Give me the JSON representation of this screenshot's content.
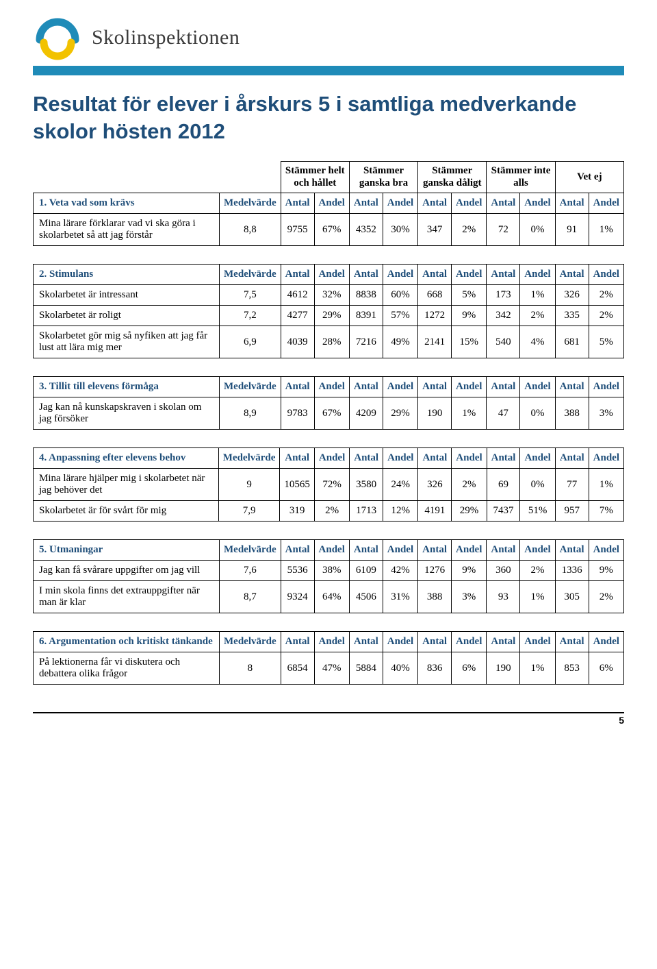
{
  "brand": {
    "name": "Skolinspektionen",
    "arc_top_color": "#1f8bb8",
    "arc_bottom_color": "#f2c200",
    "rule_color": "#1f8bb8",
    "title_color": "#1f4e79"
  },
  "title": "Resultat för elever i årskurs 5 i samtliga medverkande skolor hösten 2012",
  "column_groups": [
    "Stämmer helt och hållet",
    "Stämmer ganska bra",
    "Stämmer ganska dåligt",
    "Stämmer inte alls",
    "Vet ej"
  ],
  "medel_label": "Medelvärde",
  "sub_labels": {
    "antal": "Antal",
    "andel": "Andel"
  },
  "sections": [
    {
      "heading": "1. Veta vad som krävs",
      "rows": [
        {
          "label": "Mina lärare förklarar vad vi ska göra i skolarbetet så att jag förstår",
          "mv": "8,8",
          "c": [
            "9755",
            "67%",
            "4352",
            "30%",
            "347",
            "2%",
            "72",
            "0%",
            "91",
            "1%"
          ]
        }
      ]
    },
    {
      "heading": "2. Stimulans",
      "rows": [
        {
          "label": "Skolarbetet är intressant",
          "mv": "7,5",
          "c": [
            "4612",
            "32%",
            "8838",
            "60%",
            "668",
            "5%",
            "173",
            "1%",
            "326",
            "2%"
          ]
        },
        {
          "label": "Skolarbetet är roligt",
          "mv": "7,2",
          "c": [
            "4277",
            "29%",
            "8391",
            "57%",
            "1272",
            "9%",
            "342",
            "2%",
            "335",
            "2%"
          ]
        },
        {
          "label": "Skolarbetet gör mig så nyfiken att jag får lust att lära mig mer",
          "mv": "6,9",
          "c": [
            "4039",
            "28%",
            "7216",
            "49%",
            "2141",
            "15%",
            "540",
            "4%",
            "681",
            "5%"
          ]
        }
      ]
    },
    {
      "heading": "3. Tillit till elevens förmåga",
      "rows": [
        {
          "label": "Jag kan nå kunskapskraven i skolan om jag försöker",
          "mv": "8,9",
          "c": [
            "9783",
            "67%",
            "4209",
            "29%",
            "190",
            "1%",
            "47",
            "0%",
            "388",
            "3%"
          ]
        }
      ]
    },
    {
      "heading": "4. Anpassning efter elevens behov",
      "rows": [
        {
          "label": "Mina lärare hjälper mig i skolarbetet när jag behöver det",
          "mv": "9",
          "c": [
            "10565",
            "72%",
            "3580",
            "24%",
            "326",
            "2%",
            "69",
            "0%",
            "77",
            "1%"
          ]
        },
        {
          "label": "Skolarbetet är för svårt för mig",
          "mv": "7,9",
          "c": [
            "319",
            "2%",
            "1713",
            "12%",
            "4191",
            "29%",
            "7437",
            "51%",
            "957",
            "7%"
          ]
        }
      ]
    },
    {
      "heading": "5. Utmaningar",
      "rows": [
        {
          "label": "Jag kan få svårare uppgifter om jag vill",
          "mv": "7,6",
          "c": [
            "5536",
            "38%",
            "6109",
            "42%",
            "1276",
            "9%",
            "360",
            "2%",
            "1336",
            "9%"
          ]
        },
        {
          "label": "I min skola finns det extrauppgifter när man är klar",
          "mv": "8,7",
          "c": [
            "9324",
            "64%",
            "4506",
            "31%",
            "388",
            "3%",
            "93",
            "1%",
            "305",
            "2%"
          ]
        }
      ]
    },
    {
      "heading": "6. Argumentation och kritiskt tänkande",
      "rows": [
        {
          "label": "På lektionerna får vi diskutera och debattera olika frågor",
          "mv": "8",
          "c": [
            "6854",
            "47%",
            "5884",
            "40%",
            "836",
            "6%",
            "190",
            "1%",
            "853",
            "6%"
          ]
        }
      ]
    }
  ],
  "page_number": "5"
}
